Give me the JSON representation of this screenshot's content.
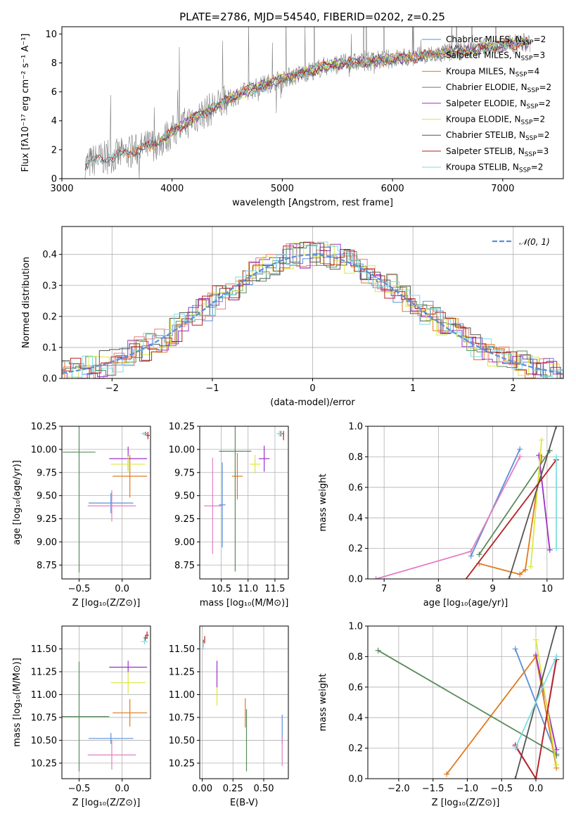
{
  "figure": {
    "title": "PLATE=2786, MJD=54540, FIBERID=0202, z=0.25"
  },
  "chart_data": [
    {
      "id": "spectrum",
      "type": "line",
      "xlabel": "wavelength [Angstrom, rest frame]",
      "ylabel": "Flux [fλ10⁻¹⁷ erg cm⁻² s⁻¹ A⁻¹]",
      "xlim": [
        3000,
        7550
      ],
      "ylim": [
        0,
        10.5
      ],
      "xticks": [
        3000,
        4000,
        5000,
        6000,
        7000
      ],
      "yticks": [
        0,
        2,
        4,
        6,
        8,
        10
      ],
      "grid": false,
      "legend_position": "top-right",
      "data_curve": {
        "x": [
          3210,
          3300,
          3500,
          3700,
          3900,
          4000,
          4200,
          4400,
          4600,
          4800,
          5000,
          5200,
          5400,
          5600,
          5800,
          6000,
          6200,
          6400,
          6600,
          6800,
          7000,
          7200
        ],
        "y": [
          0.9,
          1.3,
          1.6,
          2.0,
          2.6,
          3.2,
          4.2,
          5.0,
          5.8,
          6.4,
          6.9,
          7.3,
          7.8,
          8.0,
          8.1,
          8.3,
          8.4,
          8.6,
          8.8,
          9.0,
          9.2,
          9.4
        ]
      },
      "series": [
        {
          "name": "Chabrier MILES, N<sub>SSP</sub>=2",
          "color": "#5b8fd9",
          "x_start": 3500
        },
        {
          "name": "Salpeter MILES, N<sub>SSP</sub>=3",
          "color": "#e37f7f",
          "x_start": 3500
        },
        {
          "name": "Kroupa MILES, N<sub>SSP</sub>=4",
          "color": "#e07a1e",
          "x_start": 3500
        },
        {
          "name": "Chabrier ELODIE, N<sub>SSP</sub>=2",
          "color": "#5a8a5a",
          "x_start": 3900
        },
        {
          "name": "Salpeter ELODIE, N<sub>SSP</sub>=2",
          "color": "#9b30c8",
          "x_start": 3900
        },
        {
          "name": "Kroupa ELODIE, N<sub>SSP</sub>=2",
          "color": "#dce840",
          "x_start": 3900
        },
        {
          "name": "Chabrier STELIB, N<sub>SSP</sub>=2",
          "color": "#555555",
          "x_start": 3210
        },
        {
          "name": "Salpeter STELIB, N<sub>SSP</sub>=3",
          "color": "#b22222",
          "x_start": 3210
        },
        {
          "name": "Kroupa STELIB, N<sub>SSP</sub>=2",
          "color": "#7fdde0",
          "x_start": 3210
        }
      ]
    },
    {
      "id": "residuals",
      "type": "bar",
      "xlabel": "(data-model)/error",
      "ylabel": "Normed distribution",
      "xlim": [
        -2.5,
        2.5
      ],
      "ylim": [
        0,
        0.49
      ],
      "xticks": [
        -2,
        -1,
        0,
        1,
        2
      ],
      "yticks": [
        0.0,
        0.1,
        0.2,
        0.3,
        0.4
      ],
      "grid": true,
      "legend_position": "top-right",
      "gaussian": {
        "label": "𝒩(0, 1)",
        "color": "#5b8fd9",
        "mean": 0,
        "sigma": 1
      }
    },
    {
      "id": "age_vs_Z",
      "type": "scatter",
      "xlabel": "Z [log₁₀(Z/Z⊙)]",
      "ylabel": "age  [log₁₀(age/yr)]",
      "xlim": [
        -0.7,
        0.33
      ],
      "ylim": [
        8.6,
        10.25
      ],
      "xticks": [
        -0.5,
        0.0
      ],
      "yticks": [
        8.75,
        9.0,
        9.25,
        9.5,
        9.75,
        10.0,
        10.25
      ],
      "grid": true,
      "points": [
        {
          "x": -0.13,
          "y": 9.42,
          "xerr": 0.26,
          "yerr": 0.11,
          "color": "#5b8fd9"
        },
        {
          "x": -0.12,
          "y": 9.39,
          "xerr": 0.28,
          "yerr": 0.17,
          "color": "#e37fbf"
        },
        {
          "x": 0.09,
          "y": 9.71,
          "xerr": 0.2,
          "yerr": 0.23,
          "color": "#e07a1e"
        },
        {
          "x": -0.5,
          "y": 9.97,
          "xerr": 0.19,
          "yerr": 1.3,
          "color": "#5a8a5a"
        },
        {
          "x": 0.07,
          "y": 9.9,
          "xerr": 0.22,
          "yerr": 0.13,
          "color": "#9b30c8"
        },
        {
          "x": 0.07,
          "y": 9.84,
          "xerr": 0.2,
          "yerr": 0.09,
          "color": "#dce840"
        },
        {
          "x": 0.27,
          "y": 10.17,
          "xerr": 0.02,
          "yerr": 0.02,
          "color": "#555555"
        },
        {
          "x": 0.3,
          "y": 10.15,
          "xerr": 0.02,
          "yerr": 0.04,
          "color": "#b22222"
        },
        {
          "x": 0.25,
          "y": 10.17,
          "xerr": 0.03,
          "yerr": 0.02,
          "color": "#7fdde0"
        }
      ]
    },
    {
      "id": "age_vs_mass",
      "type": "scatter",
      "xlabel": "mass [log₁₀(M/M⊙)]",
      "ylabel": "",
      "xlim": [
        10.1,
        11.75
      ],
      "ylim": [
        8.6,
        10.25
      ],
      "xticks": [
        10.5,
        11.0,
        11.5
      ],
      "yticks": [
        8.75,
        9.0,
        9.25,
        9.5,
        9.75,
        10.0,
        10.25
      ],
      "grid": true,
      "points": [
        {
          "x": 10.52,
          "y": 9.4,
          "xerr": 0.06,
          "yerr": 0.46,
          "color": "#5b8fd9"
        },
        {
          "x": 10.34,
          "y": 9.39,
          "xerr": 0.16,
          "yerr": 0.52,
          "color": "#e37fbf"
        },
        {
          "x": 10.8,
          "y": 9.71,
          "xerr": 0.1,
          "yerr": 0.25,
          "color": "#e07a1e"
        },
        {
          "x": 10.76,
          "y": 9.98,
          "xerr": 0.3,
          "yerr": 1.3,
          "color": "#5a8a5a"
        },
        {
          "x": 11.3,
          "y": 9.9,
          "xerr": 0.1,
          "yerr": 0.14,
          "color": "#9b30c8"
        },
        {
          "x": 11.13,
          "y": 9.84,
          "xerr": 0.1,
          "yerr": 0.1,
          "color": "#dce840"
        },
        {
          "x": 11.61,
          "y": 10.17,
          "xerr": 0.04,
          "yerr": 0.03,
          "color": "#555555"
        },
        {
          "x": 11.66,
          "y": 10.15,
          "xerr": 0.01,
          "yerr": 0.05,
          "color": "#b22222"
        },
        {
          "x": 11.58,
          "y": 10.17,
          "xerr": 0.05,
          "yerr": 0.03,
          "color": "#7fdde0"
        }
      ]
    },
    {
      "id": "weight_vs_age",
      "type": "line",
      "xlabel": "age  [log₁₀(age/yr)]",
      "ylabel": "mass weight",
      "xlim": [
        6.7,
        10.3
      ],
      "ylim": [
        0.0,
        1.0
      ],
      "xticks": [
        7,
        8,
        9,
        10
      ],
      "yticks": [
        0.0,
        0.2,
        0.4,
        0.6,
        0.8,
        1.0
      ],
      "grid": true,
      "series": [
        {
          "color": "#5b8fd9",
          "x": [
            8.6,
            9.5
          ],
          "y": [
            0.15,
            0.85
          ]
        },
        {
          "color": "#e37fbf",
          "x": [
            6.85,
            8.6,
            9.5
          ],
          "y": [
            0.0,
            0.18,
            0.8
          ]
        },
        {
          "color": "#e07a1e",
          "x": [
            8.75,
            9.5,
            9.6,
            9.9
          ],
          "y": [
            0.1,
            0.03,
            0.06,
            0.8
          ]
        },
        {
          "color": "#5a8a5a",
          "x": [
            8.75,
            10.05
          ],
          "y": [
            0.16,
            0.84
          ]
        },
        {
          "color": "#9b30c8",
          "x": [
            9.85,
            10.05
          ],
          "y": [
            0.81,
            0.19
          ]
        },
        {
          "color": "#dce840",
          "x": [
            9.7,
            9.9
          ],
          "y": [
            0.08,
            0.91
          ]
        },
        {
          "color": "#555555",
          "x": [
            9.3,
            10.17
          ],
          "y": [
            0.0,
            1.0
          ]
        },
        {
          "color": "#b22222",
          "x": [
            8.4,
            10.17
          ],
          "y": [
            -0.05,
            0.78
          ]
        },
        {
          "color": "#7fdde0",
          "x": [
            10.17,
            10.17
          ],
          "y": [
            0.2,
            0.8
          ]
        }
      ]
    },
    {
      "id": "mass_vs_Z",
      "type": "scatter",
      "xlabel": "Z [log₁₀(Z/Z⊙)]",
      "ylabel": "mass [log₁₀(M/M⊙)]",
      "xlim": [
        -0.7,
        0.33
      ],
      "ylim": [
        10.08,
        11.75
      ],
      "xticks": [
        -0.5,
        0.0
      ],
      "yticks": [
        10.25,
        10.5,
        10.75,
        11.0,
        11.25,
        11.5
      ],
      "grid": true,
      "points": [
        {
          "x": -0.13,
          "y": 10.52,
          "xerr": 0.26,
          "yerr": 0.06,
          "color": "#5b8fd9"
        },
        {
          "x": -0.12,
          "y": 10.34,
          "xerr": 0.28,
          "yerr": 0.16,
          "color": "#e37fbf"
        },
        {
          "x": 0.09,
          "y": 10.8,
          "xerr": 0.2,
          "yerr": 0.15,
          "color": "#e07a1e"
        },
        {
          "x": -0.5,
          "y": 10.76,
          "xerr": 0.35,
          "yerr": 0.6,
          "color": "#5a8a5a"
        },
        {
          "x": 0.07,
          "y": 11.3,
          "xerr": 0.22,
          "yerr": 0.07,
          "color": "#9b30c8"
        },
        {
          "x": 0.07,
          "y": 11.13,
          "xerr": 0.2,
          "yerr": 0.12,
          "color": "#dce840"
        },
        {
          "x": 0.27,
          "y": 11.62,
          "xerr": 0.02,
          "yerr": 0.03,
          "color": "#555555"
        },
        {
          "x": 0.29,
          "y": 11.65,
          "xerr": 0.02,
          "yerr": 0.04,
          "color": "#b22222"
        },
        {
          "x": 0.26,
          "y": 11.58,
          "xerr": 0.04,
          "yerr": 0.03,
          "color": "#7fdde0"
        }
      ]
    },
    {
      "id": "mass_vs_ebv",
      "type": "scatter",
      "xlabel": "E(B-V)",
      "ylabel": "",
      "xlim": [
        -0.02,
        0.7
      ],
      "ylim": [
        10.08,
        11.75
      ],
      "xticks": [
        0.0,
        0.25,
        0.5
      ],
      "yticks": [
        10.25,
        10.5,
        10.75,
        11.0,
        11.25,
        11.5
      ],
      "grid": true,
      "points": [
        {
          "x": 0.65,
          "y": 10.62,
          "xerr": 0.0,
          "yerr": 0.16,
          "color": "#5b8fd9"
        },
        {
          "x": 0.65,
          "y": 10.38,
          "xerr": 0.0,
          "yerr": 0.16,
          "color": "#e37fbf"
        },
        {
          "x": 0.35,
          "y": 10.8,
          "xerr": 0.0,
          "yerr": 0.16,
          "color": "#e07a1e"
        },
        {
          "x": 0.36,
          "y": 10.5,
          "xerr": 0.0,
          "yerr": 0.34,
          "color": "#5a8a5a"
        },
        {
          "x": 0.12,
          "y": 11.22,
          "xerr": 0.0,
          "yerr": 0.15,
          "color": "#9b30c8"
        },
        {
          "x": 0.12,
          "y": 10.98,
          "xerr": 0.0,
          "yerr": 0.1,
          "color": "#dce840"
        },
        {
          "x": 0.01,
          "y": 11.56,
          "xerr": 0.0,
          "yerr": 0.04,
          "color": "#555555"
        },
        {
          "x": 0.02,
          "y": 11.6,
          "xerr": 0.0,
          "yerr": 0.04,
          "color": "#b22222"
        },
        {
          "x": 0.01,
          "y": 11.53,
          "xerr": 0.0,
          "yerr": 0.04,
          "color": "#7fdde0"
        }
      ]
    },
    {
      "id": "weight_vs_Z",
      "type": "line",
      "xlabel": "Z [log₁₀(Z/Z⊙)]",
      "ylabel": "mass weight",
      "xlim": [
        -2.45,
        0.4
      ],
      "ylim": [
        0.0,
        1.0
      ],
      "xticks": [
        -2.0,
        -1.5,
        -1.0,
        -0.5,
        0.0
      ],
      "yticks": [
        0.0,
        0.2,
        0.4,
        0.6,
        0.8,
        1.0
      ],
      "grid": true,
      "series": [
        {
          "color": "#5b8fd9",
          "x": [
            -0.3,
            0.3
          ],
          "y": [
            0.85,
            0.15
          ]
        },
        {
          "color": "#e37fbf",
          "x": [
            -0.3,
            0.0,
            0.3
          ],
          "y": [
            0.21,
            0.0,
            0.8
          ]
        },
        {
          "color": "#e07a1e",
          "x": [
            -1.3,
            0.0,
            0.3
          ],
          "y": [
            0.03,
            0.8,
            0.07
          ]
        },
        {
          "color": "#5a8a5a",
          "x": [
            -2.3,
            0.3
          ],
          "y": [
            0.84,
            0.16
          ]
        },
        {
          "color": "#9b30c8",
          "x": [
            0.0,
            0.3
          ],
          "y": [
            0.81,
            0.19
          ]
        },
        {
          "color": "#dce840",
          "x": [
            0.0,
            0.3
          ],
          "y": [
            0.91,
            0.09
          ]
        },
        {
          "color": "#555555",
          "x": [
            -0.3,
            0.3
          ],
          "y": [
            0.0,
            1.0
          ]
        },
        {
          "color": "#b22222",
          "x": [
            -0.3,
            0.0,
            0.3
          ],
          "y": [
            0.22,
            0.0,
            0.78
          ]
        },
        {
          "color": "#7fdde0",
          "x": [
            -0.3,
            0.3
          ],
          "y": [
            0.2,
            0.8
          ]
        }
      ]
    }
  ]
}
